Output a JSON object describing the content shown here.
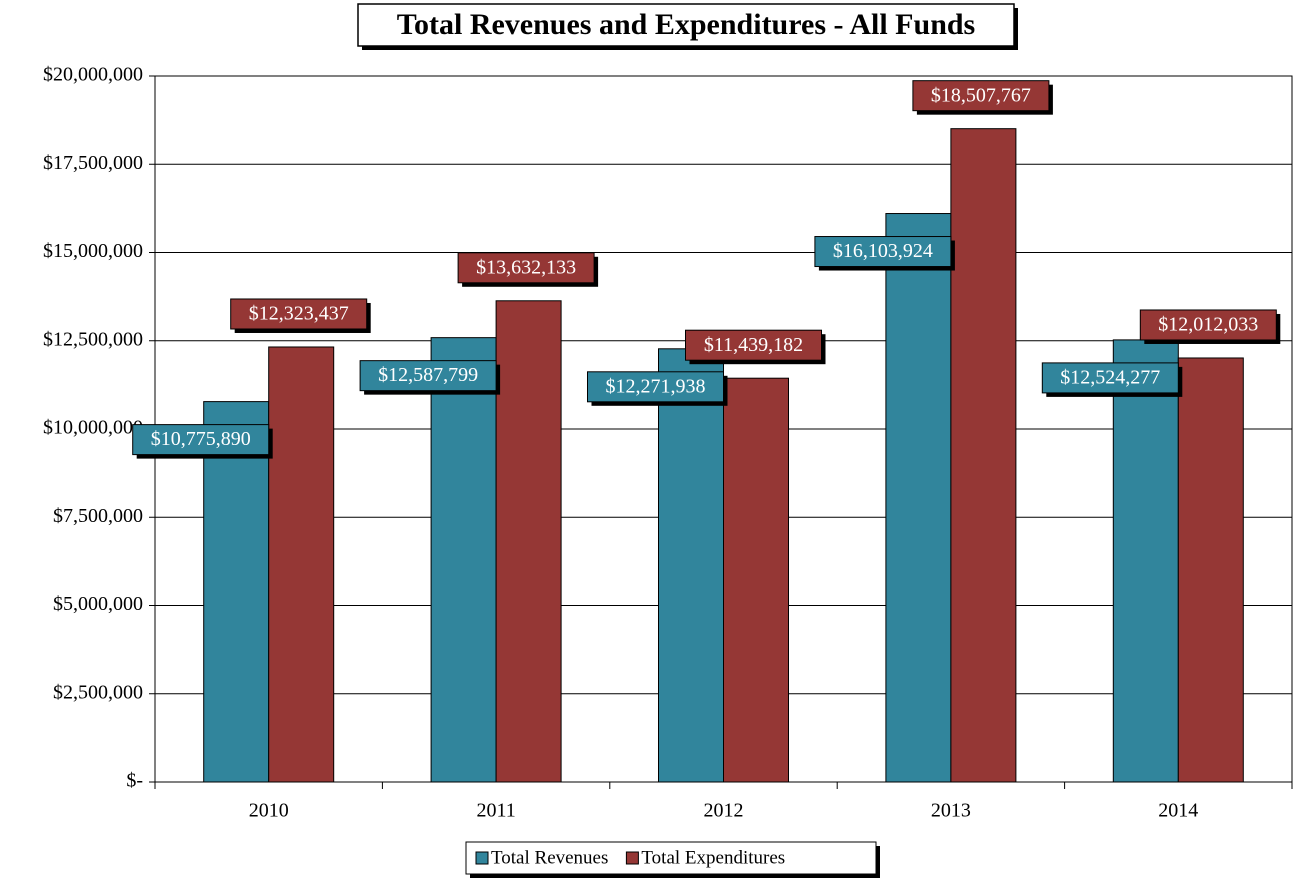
{
  "chart_data": {
    "type": "bar",
    "title": "Total Revenues and Expenditures - All Funds",
    "categories": [
      "2010",
      "2011",
      "2012",
      "2013",
      "2014"
    ],
    "series": [
      {
        "name": "Total Revenues",
        "color": "#31859c",
        "values": [
          10775890,
          12587799,
          12271938,
          16103924,
          12524277
        ],
        "value_labels": [
          "$10,775,890",
          "$12,587,799",
          "$12,271,938",
          "$16,103,924",
          "$12,524,277"
        ]
      },
      {
        "name": "Total Expenditures",
        "color": "#953735",
        "values": [
          12323437,
          13632133,
          11439182,
          18507767,
          12012033
        ],
        "value_labels": [
          "$12,323,437",
          "$13,632,133",
          "$11,439,182",
          "$18,507,767",
          "$12,012,033"
        ]
      }
    ],
    "ylim": [
      0,
      20000000
    ],
    "yticks": [
      {
        "value": 0,
        "label": "$-"
      },
      {
        "value": 2500000,
        "label": "$2,500,000"
      },
      {
        "value": 5000000,
        "label": "$5,000,000"
      },
      {
        "value": 7500000,
        "label": "$7,500,000"
      },
      {
        "value": 10000000,
        "label": "$10,000,000"
      },
      {
        "value": 12500000,
        "label": "$12,500,000"
      },
      {
        "value": 15000000,
        "label": "$15,000,000"
      },
      {
        "value": 17500000,
        "label": "$17,500,000"
      },
      {
        "value": 20000000,
        "label": "$20,000,000"
      }
    ],
    "grid": true,
    "legend": "bottom"
  }
}
